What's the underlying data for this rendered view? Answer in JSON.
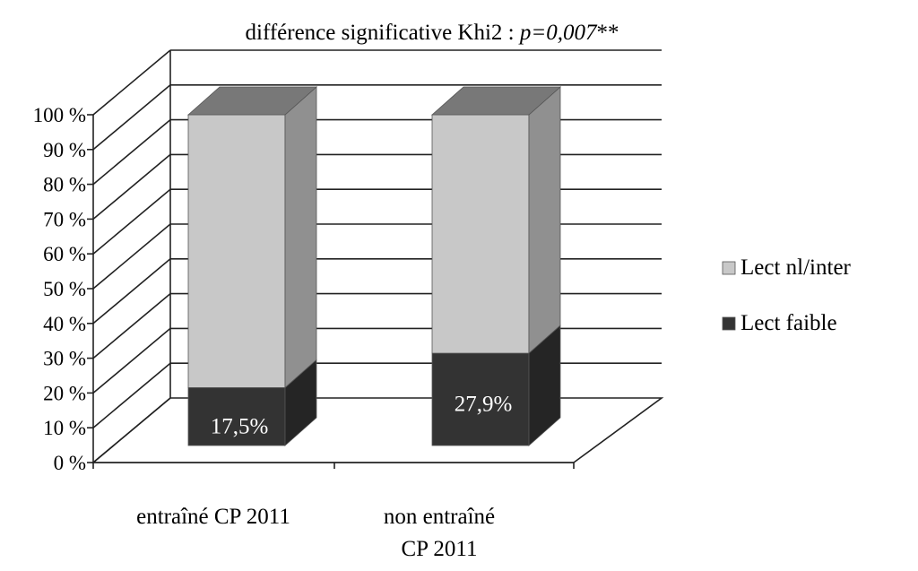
{
  "chart_data": {
    "type": "bar",
    "stacked": true,
    "three_d": true,
    "title": {
      "prefix": "différence significative Khi2 : ",
      "emphasis": "p=0,007",
      "suffix": "**"
    },
    "categories": [
      [
        "entraîné CP 2011"
      ],
      [
        "non entraîné",
        "CP 2011"
      ]
    ],
    "series": [
      {
        "name": "Lect faible",
        "values": [
          17.5,
          27.9
        ],
        "labels": [
          "17,5%",
          "27,9%"
        ],
        "color": "#333333"
      },
      {
        "name": "Lect nl/inter",
        "values": [
          82.5,
          72.1
        ],
        "color": "#c8c8c8"
      }
    ],
    "y_ticks": [
      "0 %",
      "10 %",
      "20 %",
      "30 %",
      "40 %",
      "50 %",
      "60 %",
      "70 %",
      "80 %",
      "90 %",
      "100 %"
    ],
    "ylim": [
      0,
      100
    ],
    "legend_order": [
      "Lect nl/inter",
      "Lect faible"
    ],
    "legend_position": "right",
    "grid": true
  }
}
